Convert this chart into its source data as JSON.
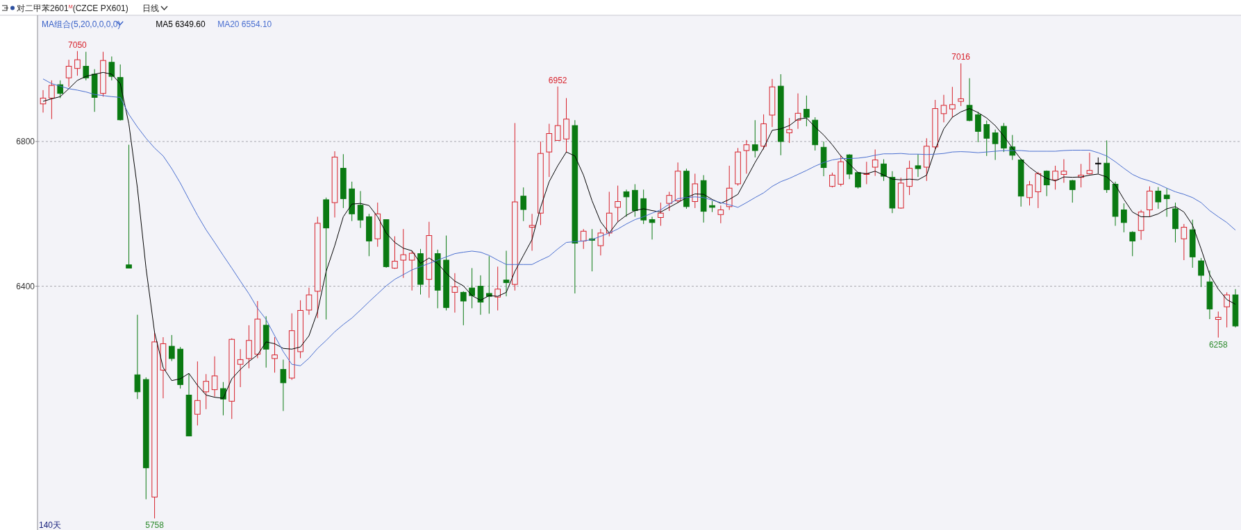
{
  "chart_data": {
    "type": "candlestick",
    "title": "对二甲苯2601$^{M}$(CZCE PX601)",
    "subtitle": "日线",
    "categories": [
      null,
      null,
      null,
      null,
      null,
      null,
      null,
      null,
      null,
      null,
      null,
      null,
      null,
      null,
      null,
      null,
      null,
      null,
      null,
      null,
      null,
      null,
      null,
      null,
      null,
      null,
      null,
      null,
      null,
      null,
      null,
      null,
      null,
      null,
      null,
      null,
      null,
      null,
      null,
      null,
      null,
      null,
      null,
      null,
      null,
      null,
      null,
      null,
      null,
      null,
      null,
      null,
      null,
      null,
      null,
      null,
      null,
      null,
      null,
      null,
      null,
      null,
      null,
      null,
      null,
      null,
      null,
      null,
      null,
      null,
      null,
      null,
      null,
      null,
      null,
      null,
      null,
      null,
      null,
      null,
      null,
      null,
      null,
      null,
      null,
      null,
      null,
      null,
      null,
      null,
      null,
      null,
      null,
      null,
      null,
      null,
      null,
      null,
      null,
      null,
      null,
      null,
      null,
      null,
      null,
      null,
      null,
      null,
      null,
      null,
      null,
      null,
      null,
      null,
      null,
      null,
      null,
      null,
      null,
      null,
      null,
      null,
      null,
      null,
      null,
      null,
      null,
      null,
      null,
      null,
      null,
      null,
      null,
      null,
      null,
      null,
      null,
      null,
      null,
      null
    ],
    "ohlc": [
      [
        6904,
        6942,
        6880,
        6920
      ],
      [
        6920,
        6969,
        6862,
        6955
      ],
      [
        6957,
        6969,
        6920,
        6933
      ],
      [
        6976,
        7026,
        6951,
        7008
      ],
      [
        7002,
        7050,
        6982,
        7026
      ],
      [
        7008,
        7048,
        6969,
        6976
      ],
      [
        6986,
        7000,
        6882,
        6922
      ],
      [
        6933,
        7048,
        6924,
        7024
      ],
      [
        7019,
        7035,
        6969,
        6980
      ],
      [
        6977,
        7013,
        6858,
        6860
      ],
      [
        6459,
        6791,
        6450,
        6450
      ],
      [
        6155,
        6321,
        6088,
        6108
      ],
      [
        6142,
        6148,
        5811,
        5898
      ],
      [
        5817,
        6272,
        5758,
        6246
      ],
      [
        6168,
        6259,
        6090,
        6241
      ],
      [
        6234,
        6265,
        6193,
        6200
      ],
      [
        6226,
        6232,
        6117,
        6128
      ],
      [
        6099,
        6159,
        5986,
        5986
      ],
      [
        6046,
        6192,
        6015,
        6084
      ],
      [
        6108,
        6157,
        6060,
        6137
      ],
      [
        6114,
        6206,
        6095,
        6152
      ],
      [
        6117,
        6135,
        6043,
        6088
      ],
      [
        6082,
        6256,
        6033,
        6253
      ],
      [
        6184,
        6226,
        6121,
        6197
      ],
      [
        6200,
        6292,
        6173,
        6250
      ],
      [
        6212,
        6359,
        6201,
        6309
      ],
      [
        6292,
        6317,
        6175,
        6226
      ],
      [
        6200,
        6259,
        6161,
        6210
      ],
      [
        6170,
        6197,
        6055,
        6133
      ],
      [
        6146,
        6325,
        6141,
        6277
      ],
      [
        6219,
        6361,
        6201,
        6333
      ],
      [
        6334,
        6396,
        6321,
        6376
      ],
      [
        6386,
        6592,
        6312,
        6574
      ],
      [
        6639,
        6645,
        6308,
        6561
      ],
      [
        6631,
        6773,
        6590,
        6757
      ],
      [
        6726,
        6765,
        6616,
        6642
      ],
      [
        6669,
        6689,
        6580,
        6600
      ],
      [
        6624,
        6663,
        6561,
        6583
      ],
      [
        6592,
        6600,
        6483,
        6525
      ],
      [
        6531,
        6631,
        6509,
        6600
      ],
      [
        6584,
        6584,
        6451,
        6454
      ],
      [
        6450,
        6538,
        6448,
        6469
      ],
      [
        6472,
        6558,
        6423,
        6487
      ],
      [
        6472,
        6498,
        6388,
        6491
      ],
      [
        6490,
        6503,
        6377,
        6405
      ],
      [
        6419,
        6578,
        6368,
        6540
      ],
      [
        6490,
        6501,
        6339,
        6389
      ],
      [
        6472,
        6540,
        6333,
        6341
      ],
      [
        6383,
        6436,
        6327,
        6398
      ],
      [
        6383,
        6386,
        6292,
        6359
      ],
      [
        6395,
        6450,
        6339,
        6374
      ],
      [
        6400,
        6430,
        6321,
        6356
      ],
      [
        6380,
        6483,
        6324,
        6372
      ],
      [
        6370,
        6454,
        6333,
        6392
      ],
      [
        6417,
        6498,
        6372,
        6410
      ],
      [
        6405,
        6851,
        6388,
        6633
      ],
      [
        6649,
        6673,
        6580,
        6612
      ],
      [
        6563,
        6600,
        6498,
        6568
      ],
      [
        6602,
        6800,
        6569,
        6767
      ],
      [
        6771,
        6849,
        6702,
        6822
      ],
      [
        6803,
        6952,
        6803,
        6844
      ],
      [
        6807,
        6920,
        6769,
        6862
      ],
      [
        6844,
        6859,
        6380,
        6519
      ],
      [
        6525,
        6558,
        6503,
        6552
      ],
      [
        6531,
        6558,
        6441,
        6527
      ],
      [
        6512,
        6558,
        6485,
        6547
      ],
      [
        6547,
        6661,
        6538,
        6602
      ],
      [
        6618,
        6678,
        6578,
        6634
      ],
      [
        6661,
        6667,
        6592,
        6647
      ],
      [
        6665,
        6682,
        6592,
        6609
      ],
      [
        6642,
        6667,
        6572,
        6583
      ],
      [
        6584,
        6592,
        6529,
        6576
      ],
      [
        6590,
        6631,
        6567,
        6602
      ],
      [
        6629,
        6661,
        6608,
        6651
      ],
      [
        6636,
        6742,
        6631,
        6718
      ],
      [
        6718,
        6725,
        6614,
        6620
      ],
      [
        6634,
        6711,
        6616,
        6683
      ],
      [
        6692,
        6707,
        6576,
        6607
      ],
      [
        6623,
        6636,
        6605,
        6618
      ],
      [
        6598,
        6623,
        6574,
        6611
      ],
      [
        6620,
        6733,
        6611,
        6671
      ],
      [
        6683,
        6782,
        6678,
        6771
      ],
      [
        6775,
        6804,
        6711,
        6791
      ],
      [
        6791,
        6859,
        6756,
        6775
      ],
      [
        6787,
        6875,
        6778,
        6849
      ],
      [
        6873,
        6973,
        6840,
        6951
      ],
      [
        6953,
        6986,
        6762,
        6800
      ],
      [
        6824,
        6865,
        6796,
        6833
      ],
      [
        6859,
        6933,
        6835,
        6878
      ],
      [
        6889,
        6927,
        6842,
        6867
      ],
      [
        6859,
        6867,
        6775,
        6791
      ],
      [
        6784,
        6800,
        6704,
        6728
      ],
      [
        6676,
        6714,
        6673,
        6707
      ],
      [
        6682,
        6762,
        6676,
        6744
      ],
      [
        6763,
        6765,
        6696,
        6710
      ],
      [
        6714,
        6716,
        6670,
        6674
      ],
      [
        6709,
        6744,
        6682,
        6711
      ],
      [
        6729,
        6778,
        6705,
        6749
      ],
      [
        6738,
        6751,
        6691,
        6704
      ],
      [
        6701,
        6718,
        6602,
        6616
      ],
      [
        6616,
        6700,
        6614,
        6685
      ],
      [
        6676,
        6747,
        6652,
        6726
      ],
      [
        6733,
        6765,
        6702,
        6725
      ],
      [
        6729,
        6809,
        6691,
        6787
      ],
      [
        6785,
        6915,
        6778,
        6891
      ],
      [
        6877,
        6929,
        6853,
        6900
      ],
      [
        6890,
        6951,
        6867,
        6902
      ],
      [
        6911,
        7016,
        6898,
        6918
      ],
      [
        6900,
        6975,
        6856,
        6858
      ],
      [
        6874,
        6882,
        6798,
        6828
      ],
      [
        6847,
        6858,
        6760,
        6809
      ],
      [
        6824,
        6833,
        6749,
        6794
      ],
      [
        6842,
        6851,
        6771,
        6782
      ],
      [
        6785,
        6818,
        6749,
        6762
      ],
      [
        6749,
        6753,
        6620,
        6649
      ],
      [
        6645,
        6691,
        6623,
        6680
      ],
      [
        6661,
        6716,
        6616,
        6711
      ],
      [
        6718,
        6720,
        6649,
        6680
      ],
      [
        6694,
        6733,
        6667,
        6718
      ],
      [
        6709,
        6751,
        6686,
        6718
      ],
      [
        6692,
        6694,
        6631,
        6667
      ],
      [
        6701,
        6738,
        6673,
        6707
      ],
      [
        6711,
        6769,
        6709,
        6720
      ],
      [
        6740,
        6756,
        6711,
        6740
      ],
      [
        6740,
        6803,
        6658,
        6667
      ],
      [
        6682,
        6689,
        6567,
        6593
      ],
      [
        6611,
        6629,
        6549,
        6576
      ],
      [
        6549,
        6552,
        6483,
        6525
      ],
      [
        6554,
        6611,
        6528,
        6605
      ],
      [
        6611,
        6676,
        6592,
        6663
      ],
      [
        6663,
        6674,
        6614,
        6633
      ],
      [
        6652,
        6671,
        6592,
        6642
      ],
      [
        6614,
        6631,
        6521,
        6559
      ],
      [
        6531,
        6572,
        6472,
        6563
      ],
      [
        6556,
        6584,
        6451,
        6481
      ],
      [
        6470,
        6478,
        6398,
        6430
      ],
      [
        6412,
        6443,
        6309,
        6337
      ],
      [
        6308,
        6330,
        6258,
        6314
      ],
      [
        6343,
        6383,
        6286,
        6376
      ],
      [
        6376,
        6392,
        6286,
        6290
      ]
    ],
    "series": [
      {
        "type": "line",
        "name": "MA5 6349.60",
        "color": "#000000",
        "values": [
          6911,
          6918,
          6924,
          6946,
          6969,
          6980,
          6986,
          6991,
          6986,
          6960,
          6849,
          6671,
          6450,
          6272,
          6175,
          6139,
          6144,
          6159,
          6126,
          6099,
          6093,
          6090,
          6144,
          6170,
          6192,
          6210,
          6246,
          6241,
          6228,
          6226,
          6232,
          6263,
          6330,
          6441,
          6512,
          6592,
          6627,
          6629,
          6623,
          6592,
          6547,
          6521,
          6505,
          6498,
          6463,
          6478,
          6463,
          6436,
          6414,
          6401,
          6374,
          6361,
          6374,
          6372,
          6383,
          6441,
          6485,
          6529,
          6618,
          6689,
          6733,
          6771,
          6760,
          6707,
          6636,
          6578,
          6547,
          6578,
          6596,
          6609,
          6614,
          6609,
          6605,
          6618,
          6631,
          6645,
          6655,
          6654,
          6640,
          6629,
          6640,
          6654,
          6698,
          6742,
          6782,
          6831,
          6835,
          6844,
          6862,
          6865,
          6840,
          6818,
          6791,
          6760,
          6738,
          6714,
          6711,
          6718,
          6707,
          6696,
          6694,
          6696,
          6694,
          6707,
          6778,
          6835,
          6867,
          6882,
          6891,
          6880,
          6865,
          6844,
          6815,
          6782,
          6751,
          6729,
          6711,
          6698,
          6691,
          6702,
          6701,
          6702,
          6707,
          6710,
          6702,
          6680,
          6640,
          6605,
          6592,
          6592,
          6600,
          6614,
          6620,
          6605,
          6569,
          6503,
          6432,
          6392,
          6363,
          6350
        ]
      },
      {
        "type": "line",
        "name": "MA20 6554.10",
        "color": "#4a6fd0",
        "values": [
          6973,
          6960,
          6953,
          6946,
          6942,
          6937,
          6930,
          6927,
          6924,
          6922,
          6875,
          6840,
          6809,
          6782,
          6760,
          6725,
          6685,
          6640,
          6596,
          6556,
          6521,
          6485,
          6450,
          6414,
          6379,
          6339,
          6308,
          6263,
          6219,
          6184,
          6180,
          6201,
          6228,
          6250,
          6274,
          6294,
          6312,
          6334,
          6357,
          6379,
          6401,
          6419,
          6432,
          6445,
          6454,
          6463,
          6472,
          6481,
          6490,
          6494,
          6497,
          6494,
          6485,
          6472,
          6460,
          6460,
          6460,
          6460,
          6472,
          6483,
          6503,
          6521,
          6523,
          6525,
          6529,
          6538,
          6547,
          6558,
          6572,
          6584,
          6592,
          6602,
          6611,
          6627,
          6642,
          6645,
          6647,
          6645,
          6638,
          6631,
          6625,
          6618,
          6631,
          6645,
          6658,
          6676,
          6689,
          6698,
          6709,
          6720,
          6732,
          6742,
          6749,
          6753,
          6753,
          6754,
          6757,
          6762,
          6766,
          6766,
          6767,
          6765,
          6765,
          6764,
          6765,
          6767,
          6771,
          6772,
          6771,
          6769,
          6771,
          6773,
          6775,
          6775,
          6775,
          6773,
          6773,
          6773,
          6773,
          6775,
          6776,
          6776,
          6776,
          6769,
          6760,
          6744,
          6726,
          6709,
          6698,
          6691,
          6682,
          6671,
          6661,
          6654,
          6645,
          6631,
          6609,
          6592,
          6576,
          6555
        ]
      }
    ],
    "legend_title": "MA组合(5,20,0,0,0,0)",
    "legend": "top left",
    "ylim": [
      5726,
      7149
    ],
    "yticks": [
      6400,
      6800
    ],
    "grid": "y",
    "annotations": [
      {
        "text": "7050",
        "y": 7050
      },
      {
        "text": "5758",
        "y": 5758
      },
      {
        "text": "6952",
        "y": 6952
      },
      {
        "text": "7016",
        "y": 7016
      },
      {
        "text": "6258",
        "y": 6258
      },
      "140天"
    ]
  }
}
